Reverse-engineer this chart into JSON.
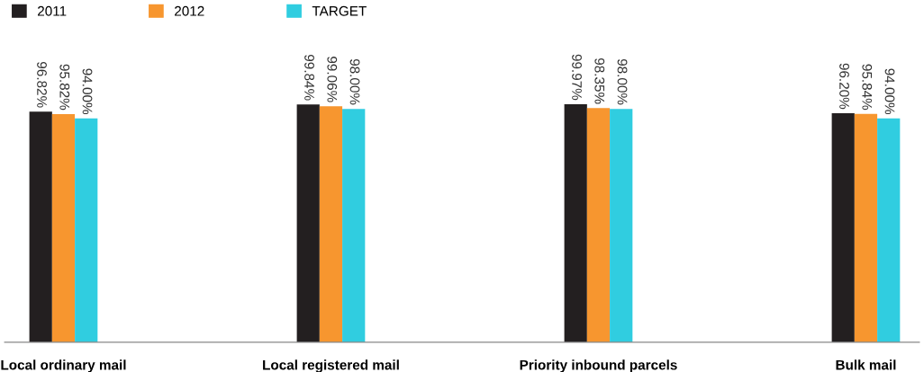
{
  "chart_data": {
    "type": "bar",
    "categories": [
      "Local ordinary mail",
      "Local registered mail",
      "Priority inbound parcels",
      "Bulk mail"
    ],
    "series": [
      {
        "name": "2011",
        "color": "#231f20",
        "values": [
          96.82,
          99.84,
          99.97,
          96.2
        ],
        "value_labels": [
          "96.82%",
          "99.84%",
          "99.97%",
          "96.20%"
        ]
      },
      {
        "name": "2012",
        "color": "#f7962f",
        "values": [
          95.82,
          99.06,
          98.35,
          95.84
        ],
        "value_labels": [
          "95.82%",
          "99.06%",
          "98.35%",
          "95.84%"
        ]
      },
      {
        "name": "TARGET",
        "color": "#30cde0",
        "values": [
          94.0,
          98.0,
          98.0,
          94.0
        ],
        "value_labels": [
          "94.00%",
          "98.00%",
          "98.00%",
          "94.00%"
        ]
      }
    ],
    "legend": "top left",
    "grid": false
  }
}
